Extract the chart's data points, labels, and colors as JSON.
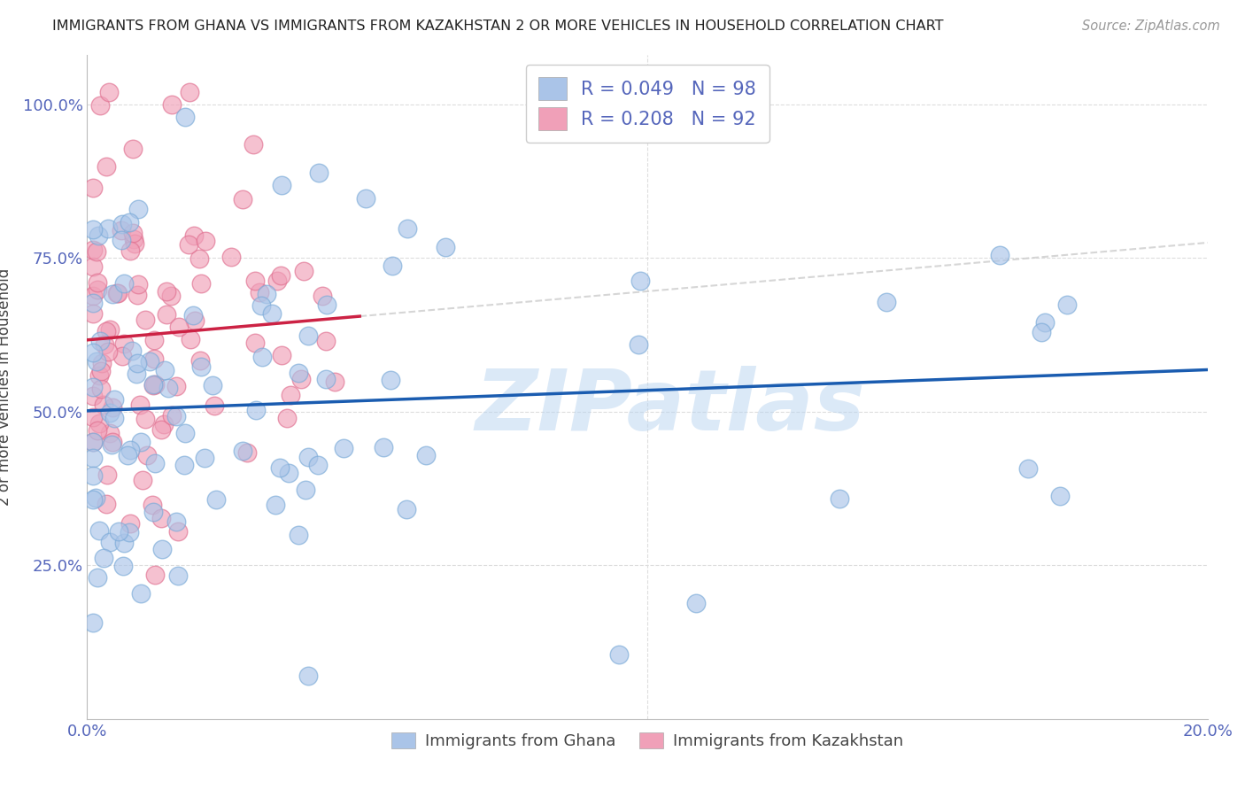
{
  "title": "IMMIGRANTS FROM GHANA VS IMMIGRANTS FROM KAZAKHSTAN 2 OR MORE VEHICLES IN HOUSEHOLD CORRELATION CHART",
  "source": "Source: ZipAtlas.com",
  "ylabel": "2 or more Vehicles in Household",
  "xlim": [
    0.0,
    0.2
  ],
  "ylim": [
    0.0,
    1.08
  ],
  "ghana_R": 0.049,
  "ghana_N": 98,
  "kazakhstan_R": 0.208,
  "kazakhstan_N": 92,
  "ghana_color": "#aac4e8",
  "kazakhstan_color": "#f0a0b8",
  "ghana_edge_color": "#7aaad8",
  "kazakhstan_edge_color": "#e07090",
  "ghana_line_color": "#1a5cb0",
  "kazakhstan_line_color": "#cc2244",
  "dashed_line_color": "#cccccc",
  "watermark": "ZIPatlas",
  "watermark_color": "#b8d4f0",
  "legend_title_ghana": "Immigrants from Ghana",
  "legend_title_kazakhstan": "Immigrants from Kazakhstan",
  "tick_color": "#5566bb",
  "grid_color": "#dddddd",
  "title_color": "#222222",
  "source_color": "#999999"
}
